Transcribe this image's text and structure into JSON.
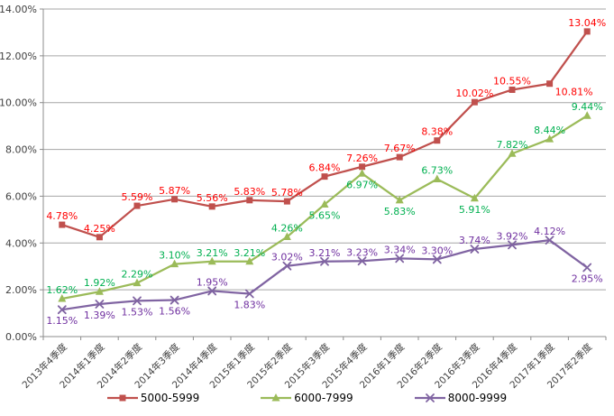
{
  "chart_data": {
    "type": "line",
    "title": "",
    "xlabel": "",
    "ylabel": "",
    "categories": [
      "2013年4季度",
      "2014年1季度",
      "2014年2季度",
      "2014年3季度",
      "2014年4季度",
      "2015年1季度",
      "2015年2季度",
      "2015年3季度",
      "2015年4季度",
      "2016年1季度",
      "2016年2季度",
      "2016年3季度",
      "2016年4季度",
      "2017年1季度",
      "2017年2季度"
    ],
    "series": [
      {
        "name": "5000-5999",
        "values": [
          4.78,
          4.25,
          5.59,
          5.87,
          5.56,
          5.83,
          5.78,
          6.84,
          7.26,
          7.67,
          8.38,
          10.02,
          10.55,
          10.81,
          13.04
        ],
        "line_color": "#C0504D",
        "label_color": "#FF0000",
        "marker": "square"
      },
      {
        "name": "6000-7999",
        "values": [
          1.62,
          1.92,
          2.29,
          3.1,
          3.21,
          3.21,
          4.26,
          5.65,
          6.97,
          5.83,
          6.73,
          5.91,
          7.82,
          8.44,
          9.44
        ],
        "line_color": "#9BBB59",
        "label_color": "#00B050",
        "marker": "triangle"
      },
      {
        "name": "8000-9999",
        "values": [
          1.15,
          1.39,
          1.53,
          1.56,
          1.95,
          1.83,
          3.02,
          3.21,
          3.23,
          3.34,
          3.3,
          3.74,
          3.92,
          4.12,
          2.95
        ],
        "line_color": "#8064A2",
        "label_color": "#7030A0",
        "marker": "x"
      }
    ],
    "ylim": [
      0,
      14
    ],
    "y_tick_step": 2,
    "y_tick_labels": [
      "0.00%",
      "2.00%",
      "4.00%",
      "6.00%",
      "8.00%",
      "10.00%",
      "12.00%",
      "14.00%"
    ],
    "label_format": "percent-2dp",
    "grid": true,
    "legend_position": "bottom"
  },
  "colors": {
    "grid": "#A6A6A6",
    "axis": "#8C8C8C",
    "axis_text": "#404040",
    "background": "#FFFFFF"
  }
}
